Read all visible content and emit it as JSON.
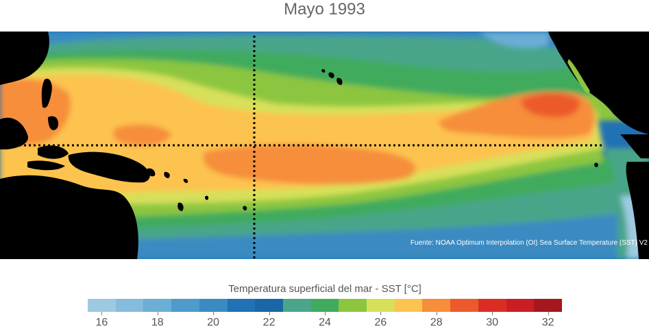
{
  "title": "Mayo 1993",
  "source": "Fuente: NOAA Optimum Interpolation (OI) Sea Surface Temperature (SST) V2",
  "colorbar": {
    "title": "Temperatura superficial del mar - SST  [°C]",
    "tick_labels": [
      "16",
      "18",
      "20",
      "22",
      "24",
      "26",
      "28",
      "30",
      "32"
    ],
    "colors": [
      "#9ecae1",
      "#85bbdc",
      "#6baed6",
      "#4f9bcc",
      "#3a8bc2",
      "#2171b5",
      "#1a67a8",
      "#4aa58a",
      "#41ab5d",
      "#8cc63f",
      "#d7e05a",
      "#fdc350",
      "#f68e3a",
      "#ec5a2b",
      "#dc2d25",
      "#c81e24",
      "#a7171e"
    ],
    "units": "°C"
  },
  "map": {
    "land_color": "#000000",
    "background_color": "#1f6fb0"
  }
}
